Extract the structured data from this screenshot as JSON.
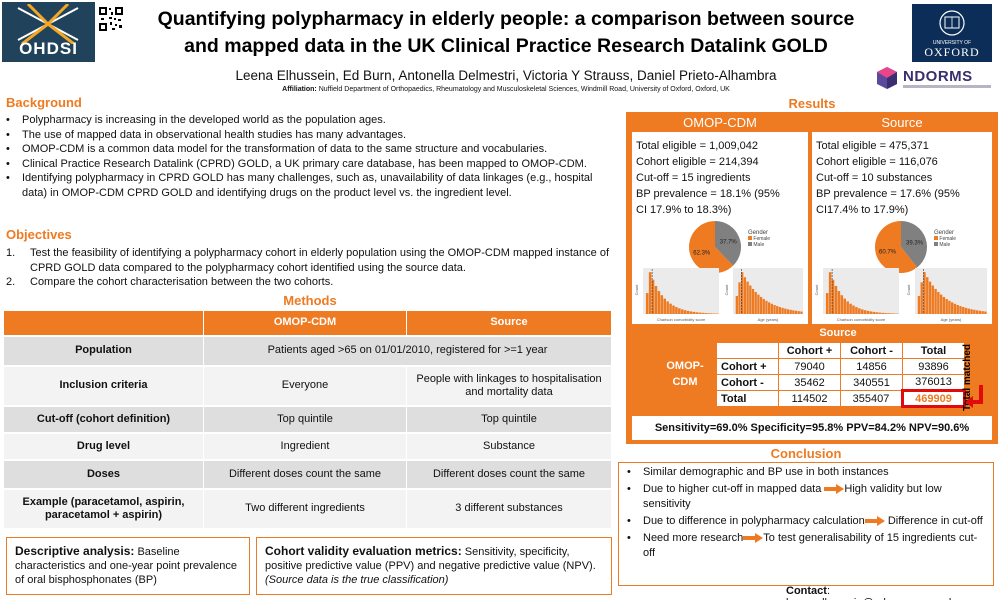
{
  "header": {
    "logo_left_text": "OHDSI",
    "title_line1": "Quantifying polypharmacy in elderly people: a comparison between source",
    "title_line2": "and mapped data in the UK Clinical Practice Research Datalink GOLD",
    "authors": "Leena Elhussein, Ed Burn, Antonella Delmestri, Victoria Y Strauss, Daniel Prieto-Alhambra",
    "affiliation_label": "Affiliation:",
    "affiliation": "Nuffield Department of Orthopaedics, Rheumatology and Musculoskeletal Sciences, Windmill Road, University of Oxford, Oxford, UK",
    "oxford_line1": "UNIVERSITY OF",
    "oxford_line2": "OXFORD",
    "ndorms": "NDORMS"
  },
  "background": {
    "heading": "Background",
    "bullets": [
      "Polypharmacy is increasing in the developed world as the population ages.",
      "The use of mapped data in observational health studies has many advantages.",
      "OMOP-CDM is a common data model for the transformation of data to the same structure and vocabularies.",
      "Clinical Practice Research Datalink (CPRD) GOLD, a UK primary care database, has been mapped to OMOP-CDM.",
      "Identifying polypharmacy in CPRD GOLD has many challenges, such as, unavailability of data linkages (e.g., hospital data) in OMOP-CDM CPRD GOLD and identifying drugs on the product level vs. the ingredient level."
    ]
  },
  "objectives": {
    "heading": "Objectives",
    "items": [
      "Test the feasibility of identifying a polypharmacy cohort in elderly population using the OMOP-CDM mapped instance of CPRD GOLD data compared to the polypharmacy cohort identified using the source data.",
      "Compare the  cohort characterisation between the two cohorts."
    ],
    "num1": "1.",
    "num2": "2."
  },
  "methods": {
    "heading": "Methods",
    "col_omop": "OMOP-CDM",
    "col_source": "Source",
    "rows": [
      {
        "label": "Population",
        "merged": "Patients aged >65 on 01/01/2010, registered for >=1 year"
      },
      {
        "label": "Inclusion  criteria",
        "omop": "Everyone",
        "source": "People with linkages to hospitalisation and mortality data"
      },
      {
        "label": "Cut-off (cohort definition)",
        "omop": "Top quintile",
        "source": "Top quintile"
      },
      {
        "label": "Drug level",
        "omop": "Ingredient",
        "source": "Substance"
      },
      {
        "label": "Doses",
        "omop": "Different doses count the same",
        "source": "Different doses count the same"
      },
      {
        "label": "Example (paracetamol, aspirin, paracetamol + aspirin)",
        "omop": "Two different ingredients",
        "source": "3 different substances"
      }
    ]
  },
  "descriptive": {
    "heading": "Descriptive analysis:",
    "text": " Baseline characteristics and one-year point prevalence of oral bisphosphonates (BP)"
  },
  "cohort_validity": {
    "heading": "Cohort validity evaluation metrics:",
    "text": " Sensitivity, specificity, positive predictive value (PPV) and negative predictive value (NPV). ",
    "italic": "(Source data is the true classification)"
  },
  "results": {
    "heading": "Results",
    "omop": {
      "title": "OMOP-CDM",
      "total_eligible": "Total eligible =  1,009,042",
      "cohort_eligible": "Cohort eligible = 214,394",
      "cutoff": "Cut-off = 15 ingredients",
      "bp1": "BP prevalence = 18.1% (95%",
      "bp2": "CI 17.9% to 18.3%)",
      "pie_female": "62.3%",
      "pie_male": "37.7%"
    },
    "source": {
      "title": "Source",
      "total_eligible": "Total eligible = 475,371",
      "cohort_eligible": "Cohort eligible = 116,076",
      "cutoff": "Cut-off = 10 substances",
      "bp1": "BP prevalence = 17.6% (95%",
      "bp2": "CI17.4% to 17.9%)",
      "pie_female": "60.7%",
      "pie_male": "39.3%"
    },
    "legend_title": "Gender",
    "legend_female": "Female",
    "legend_male": "Male",
    "hist1_xlabel": "Charlson comorbidity score",
    "hist2_xlabel": "Age (years)",
    "hist_ylabel": "Count"
  },
  "contingency": {
    "source_label": "Source",
    "omop_label": "OMOP-CDM",
    "cols": [
      "Cohort +",
      "Cohort -",
      "Total"
    ],
    "rows": [
      {
        "label": "Cohort +",
        "values": [
          "79040",
          "14856",
          "93896"
        ]
      },
      {
        "label": "Cohort -",
        "values": [
          "35462",
          "340551",
          "376013"
        ]
      },
      {
        "label": "Total",
        "values": [
          "114502",
          "355407",
          "469909"
        ]
      }
    ],
    "total_matched": "Total matched"
  },
  "metrics": {
    "text": "Sensitivity=69.0%  Specificity=95.8%  PPV=84.2%  NPV=90.6%"
  },
  "conclusion": {
    "heading": "Conclusion",
    "items": [
      {
        "a": "Similar demographic and BP use in both instances"
      },
      {
        "a": "Due to higher cut-off in mapped data",
        "b": "High validity but low sensitivity"
      },
      {
        "a": "Due to difference in polypharmacy calculation",
        "b": "Difference in cut-off"
      },
      {
        "a": "Need more research",
        "b": "To test generalisability of 15 ingredients cut-off"
      }
    ]
  },
  "contact": {
    "label": "Contact",
    "text": ": leena.elhussein@ndorms.ox.ac.uk"
  },
  "chart_data": [
    {
      "type": "pie",
      "title": "OMOP-CDM Gender",
      "categories": [
        "Female",
        "Male"
      ],
      "values": [
        62.3,
        37.7
      ]
    },
    {
      "type": "pie",
      "title": "Source Gender",
      "categories": [
        "Female",
        "Male"
      ],
      "values": [
        60.7,
        39.3
      ]
    }
  ],
  "colors": {
    "accent": "#ee7a21",
    "male": "#808080",
    "highlight": "#e10b0b"
  }
}
